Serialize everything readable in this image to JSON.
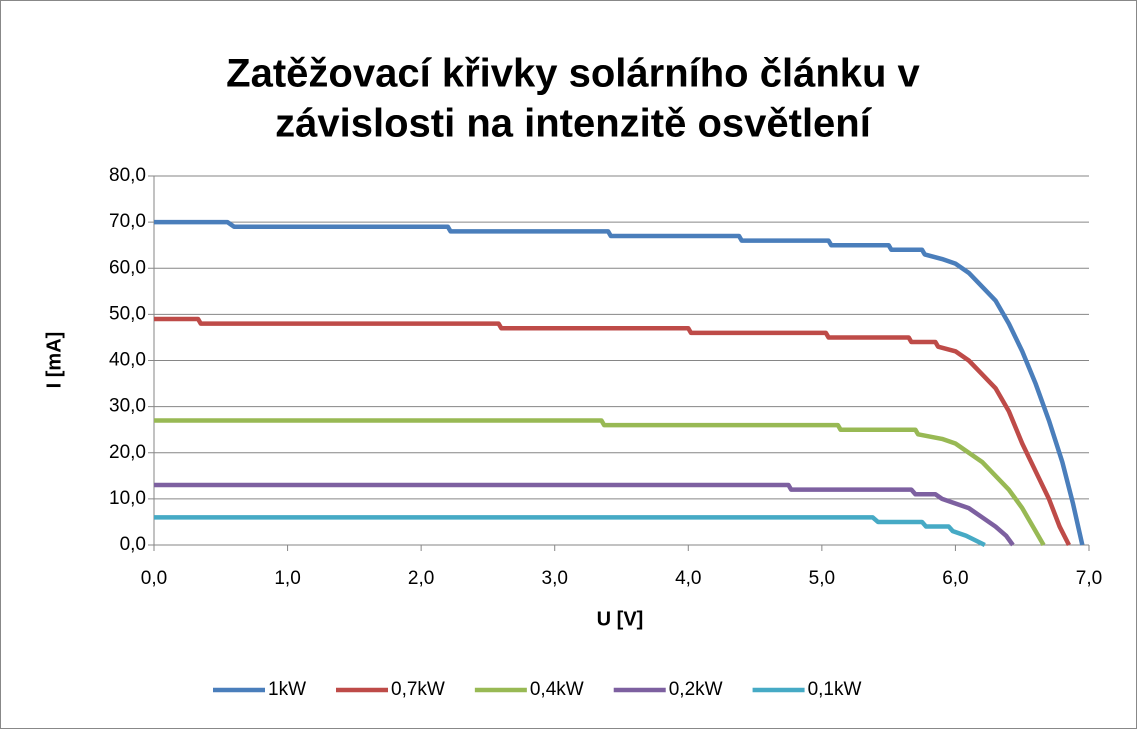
{
  "chart_data": {
    "type": "line",
    "title": [
      "Zatěžovací křivky solárního článku v",
      "závislosti na intenzitě osvětlení"
    ],
    "x_label": "U [V]",
    "y_label": "I [mA]",
    "xlim": [
      0,
      7
    ],
    "ylim": [
      0,
      80
    ],
    "xticks": [
      {
        "value": 0,
        "label": "0,0"
      },
      {
        "value": 1,
        "label": "1,0"
      },
      {
        "value": 2,
        "label": "2,0"
      },
      {
        "value": 3,
        "label": "3,0"
      },
      {
        "value": 4,
        "label": "4,0"
      },
      {
        "value": 5,
        "label": "5,0"
      },
      {
        "value": 6,
        "label": "6,0"
      },
      {
        "value": 7,
        "label": "7,0"
      }
    ],
    "yticks": [
      {
        "value": 0,
        "label": "0,0"
      },
      {
        "value": 10,
        "label": "10,0"
      },
      {
        "value": 20,
        "label": "20,0"
      },
      {
        "value": 30,
        "label": "30,0"
      },
      {
        "value": 40,
        "label": "40,0"
      },
      {
        "value": 50,
        "label": "50,0"
      },
      {
        "value": 60,
        "label": "60,0"
      },
      {
        "value": 70,
        "label": "70,0"
      },
      {
        "value": 80,
        "label": "80,0"
      }
    ],
    "grid": true,
    "legend": "bottom",
    "series": [
      {
        "name": "1kW",
        "color": "#4a7ebb",
        "x": [
          0,
          0.55,
          0.6,
          2.2,
          2.22,
          3.4,
          3.42,
          4.38,
          4.4,
          5.05,
          5.07,
          5.5,
          5.52,
          5.75,
          5.77,
          5.9,
          6.0,
          6.1,
          6.2,
          6.3,
          6.4,
          6.5,
          6.6,
          6.7,
          6.8,
          6.88,
          6.95
        ],
        "values": [
          70,
          70,
          69,
          69,
          68,
          68,
          67,
          67,
          66,
          66,
          65,
          65,
          64,
          64,
          63,
          62,
          61,
          59,
          56,
          53,
          48,
          42,
          35,
          27,
          18,
          9,
          0
        ]
      },
      {
        "name": "0,7kW",
        "color": "#be4b48",
        "x": [
          0,
          0.33,
          0.35,
          2.58,
          2.6,
          4.0,
          4.02,
          5.03,
          5.05,
          5.65,
          5.67,
          5.85,
          5.87,
          6.0,
          6.1,
          6.2,
          6.3,
          6.4,
          6.5,
          6.6,
          6.7,
          6.78,
          6.85
        ],
        "values": [
          49,
          49,
          48,
          48,
          47,
          47,
          46,
          46,
          45,
          45,
          44,
          44,
          43,
          42,
          40,
          37,
          34,
          29,
          22,
          16,
          10,
          4,
          0
        ]
      },
      {
        "name": "0,4kW",
        "color": "#98b954",
        "x": [
          0,
          3.35,
          3.37,
          5.12,
          5.14,
          5.7,
          5.72,
          5.9,
          6.0,
          6.1,
          6.2,
          6.3,
          6.4,
          6.5,
          6.6,
          6.66
        ],
        "values": [
          27,
          27,
          26,
          26,
          25,
          25,
          24,
          23,
          22,
          20,
          18,
          15,
          12,
          8,
          3,
          0
        ]
      },
      {
        "name": "0,2kW",
        "color": "#7d60a0",
        "x": [
          0,
          4.75,
          4.77,
          5.67,
          5.7,
          5.85,
          5.9,
          6.0,
          6.1,
          6.2,
          6.3,
          6.38,
          6.43
        ],
        "values": [
          13,
          13,
          12,
          12,
          11,
          11,
          10,
          9,
          8,
          6,
          4,
          2,
          0
        ]
      },
      {
        "name": "0,1kW",
        "color": "#46aac5",
        "x": [
          0,
          5.38,
          5.42,
          5.75,
          5.78,
          5.95,
          5.98,
          6.08,
          6.15,
          6.22
        ],
        "values": [
          6,
          6,
          5,
          5,
          4,
          4,
          3,
          2,
          1,
          0
        ]
      }
    ]
  }
}
